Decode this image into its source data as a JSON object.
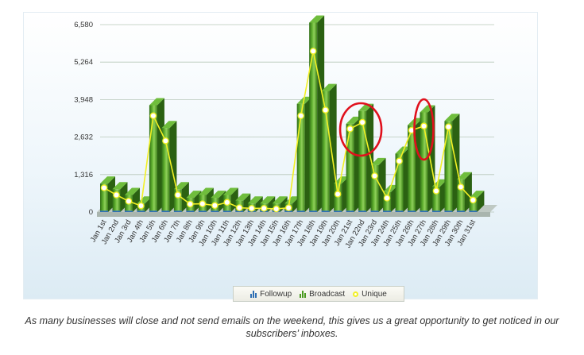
{
  "chart_data": {
    "type": "bar",
    "categories": [
      "Jan 1st",
      "Jan 2nd",
      "Jan 3rd",
      "Jan 4th",
      "Jan 5th",
      "Jan 6th",
      "Jan 7th",
      "Jan 8th",
      "Jan 9th",
      "Jan 10th",
      "Jan 11th",
      "Jan 12th",
      "Jan 13th",
      "Jan 14th",
      "Jan 15th",
      "Jan 16th",
      "Jan 17th",
      "Jan 18th",
      "Jan 19th",
      "Jan 20th",
      "Jan 21st",
      "Jan 22nd",
      "Jan 23rd",
      "Jan 24th",
      "Jan 25th",
      "Jan 26th",
      "Jan 27th",
      "Jan 28th",
      "Jan 29th",
      "Jan 30th",
      "Jan 31st"
    ],
    "yticks": [
      "0",
      "1,316",
      "2,632",
      "3,948",
      "5,264",
      "6,580"
    ],
    "ylim": [
      0,
      6580
    ],
    "grid": true,
    "legend_position": "bottom",
    "series": [
      {
        "name": "Followup",
        "type": "bar",
        "color": "#2e6fb4",
        "values": [
          50,
          50,
          50,
          50,
          50,
          50,
          50,
          50,
          50,
          50,
          50,
          50,
          50,
          50,
          50,
          50,
          50,
          50,
          50,
          50,
          50,
          50,
          50,
          50,
          50,
          50,
          50,
          50,
          50,
          50,
          50
        ]
      },
      {
        "name": "Broadcast",
        "type": "bar",
        "color": "#4a9a20",
        "values": [
          950,
          750,
          550,
          250,
          3700,
          2900,
          750,
          450,
          550,
          450,
          550,
          350,
          250,
          250,
          250,
          250,
          3750,
          6600,
          4200,
          950,
          3050,
          3500,
          1600,
          650,
          2000,
          3000,
          3450,
          850,
          3150,
          1100,
          450
        ]
      },
      {
        "name": "Unique",
        "type": "line",
        "color": "#f2f024",
        "values": [
          850,
          600,
          380,
          220,
          3380,
          2500,
          600,
          280,
          290,
          230,
          340,
          150,
          130,
          130,
          110,
          150,
          3380,
          5650,
          3580,
          630,
          2920,
          3150,
          1270,
          490,
          1790,
          2870,
          3020,
          740,
          2990,
          880,
          420
        ]
      }
    ]
  },
  "highlights": [
    {
      "label": "Jan 21st - Jan 23rd",
      "color": "#e0101c"
    },
    {
      "label": "Jan 27th",
      "color": "#e0101c"
    }
  ],
  "caption": "As many businesses will close and not send emails on the weekend, this gives us a great opportunity to get noticed in our subscribers’ inboxes."
}
